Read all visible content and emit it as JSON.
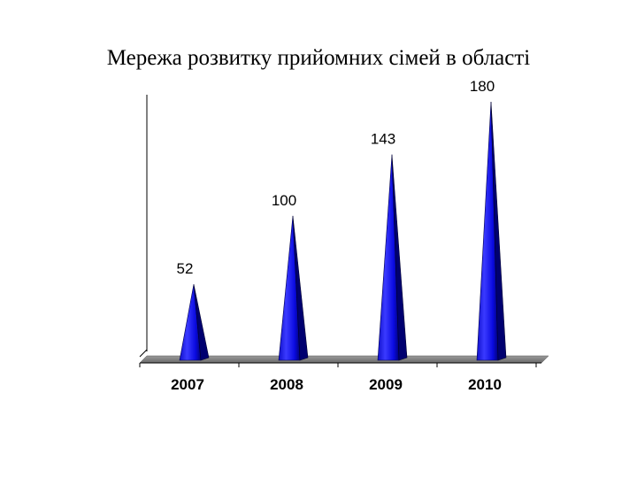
{
  "chart_data": {
    "type": "bar",
    "style": "3d-cone",
    "title": "Мережа розвитку прийомних сімей в області",
    "categories": [
      "2007",
      "2008",
      "2009",
      "2010"
    ],
    "values": [
      52,
      100,
      143,
      180
    ],
    "data_labels": [
      "52",
      "100",
      "143",
      "180"
    ],
    "xlabel": "",
    "ylabel": "",
    "ylim": [
      0,
      180
    ],
    "grid": false,
    "legend": "none",
    "colors": {
      "bar": "#1a1aff",
      "bar_dark": "#000070",
      "floor": "#808080"
    }
  }
}
